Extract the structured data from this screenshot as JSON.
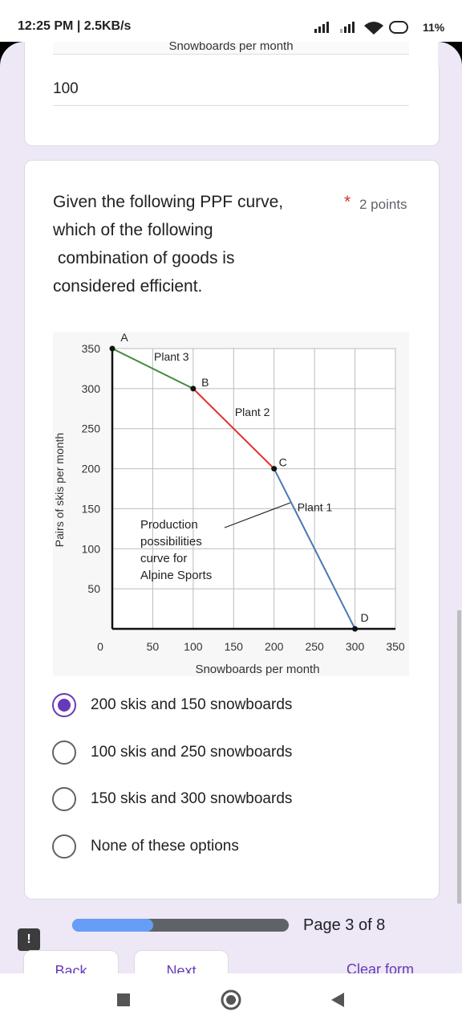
{
  "status_bar": {
    "time": "12:25 PM | 2.5KB/s",
    "battery": "11%"
  },
  "previous_question": {
    "cropped_caption": "Snowboards per month",
    "answer": "100"
  },
  "question": {
    "text_lines": [
      "Given the following PPF curve,",
      "which of the following",
      " combination of goods is",
      "considered efficient."
    ],
    "required": "*",
    "points": "2 points"
  },
  "chart_data": {
    "type": "line",
    "xlabel": "Snowboards per month",
    "ylabel": "Pairs of skis per month",
    "xlim": [
      0,
      350
    ],
    "ylim": [
      0,
      350
    ],
    "xticks": [
      0,
      50,
      100,
      150,
      200,
      250,
      300,
      350
    ],
    "yticks": [
      50,
      100,
      150,
      200,
      250,
      300,
      350
    ],
    "grid": true,
    "series": [
      {
        "name": "Plant 3",
        "color": "#3d8b3d",
        "x": [
          0,
          100
        ],
        "values": [
          350,
          300
        ]
      },
      {
        "name": "Plant 2",
        "color": "#e0302a",
        "x": [
          100,
          200
        ],
        "values": [
          300,
          200
        ]
      },
      {
        "name": "Plant 1",
        "color": "#4a78b5",
        "x": [
          200,
          300
        ],
        "values": [
          200,
          0
        ]
      }
    ],
    "points": [
      {
        "label": "A",
        "x": 0,
        "y": 350
      },
      {
        "label": "B",
        "x": 100,
        "y": 300
      },
      {
        "label": "C",
        "x": 200,
        "y": 200
      },
      {
        "label": "D",
        "x": 300,
        "y": 0
      }
    ],
    "annotation": [
      "Production",
      "possibilities",
      "curve for",
      "Alpine Sports"
    ]
  },
  "options": [
    {
      "label": "200 skis and 150 snowboards",
      "selected": true
    },
    {
      "label": "100 skis and 250 snowboards",
      "selected": false
    },
    {
      "label": "150 skis and 300 snowboards",
      "selected": false
    },
    {
      "label": "None of these options",
      "selected": false
    }
  ],
  "progress": {
    "label": "Page 3 of 8",
    "current": 3,
    "total": 8
  },
  "buttons": {
    "back": "Back",
    "next": "Next",
    "clear": "Clear form"
  }
}
